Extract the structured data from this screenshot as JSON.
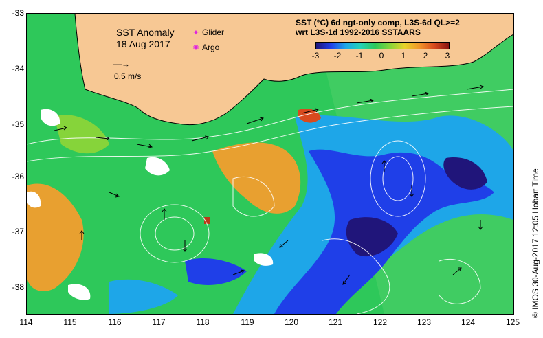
{
  "map": {
    "title_line1": "SST Anomaly",
    "title_line2": "18 Aug 2017",
    "markers": [
      {
        "symbol": "✦",
        "label": "Glider",
        "color": "#e020e0"
      },
      {
        "symbol": "✺",
        "label": "Argo",
        "color": "#e020e0"
      }
    ],
    "velocity_scale": {
      "arrow": "—→",
      "label": "0.5 m/s"
    },
    "colorbar": {
      "title_line1": "SST (°C) 6d ngt-only comp, L3S-6d QL>=2",
      "title_line2": "wrt L3S-1d 1992-2016 SSTAARS",
      "ticks": [
        "-3",
        "-2",
        "-1",
        "0",
        "1",
        "2",
        "3"
      ],
      "range": [
        -3,
        3
      ]
    },
    "longitude_ticks": [
      "114",
      "115",
      "116",
      "117",
      "118",
      "119",
      "120",
      "121",
      "122",
      "123",
      "124",
      "125"
    ],
    "latitude_ticks": [
      "-33",
      "-34",
      "-35",
      "-36",
      "-37",
      "-38"
    ],
    "colors": {
      "land": "#f7c894",
      "anom_neutral": "#2ec85a",
      "anom_cold": "#1f3fe8",
      "anom_very_cold": "#20157a",
      "anom_cool": "#1ea6e8",
      "anom_warm": "#e8a030",
      "anom_hot": "#b83a18"
    },
    "credit": "© IMOS 30-Aug-2017 12:05 Hobart Time"
  }
}
